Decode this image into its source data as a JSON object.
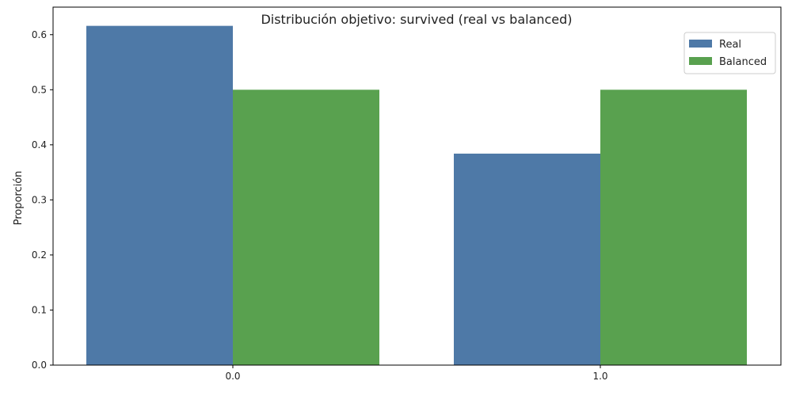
{
  "chart_data": {
    "type": "bar",
    "title": "Distribución objetivo: survived (real vs balanced)",
    "xlabel": "",
    "ylabel": "Proporción",
    "categories": [
      "0.0",
      "1.0"
    ],
    "series": [
      {
        "name": "Real",
        "values": [
          0.616,
          0.384
        ],
        "color": "#4e79a7"
      },
      {
        "name": "Balanced",
        "values": [
          0.5,
          0.5
        ],
        "color": "#59a14f"
      }
    ],
    "ylim": [
      0,
      0.65
    ],
    "yticks": [
      "0.0",
      "0.1",
      "0.2",
      "0.3",
      "0.4",
      "0.5",
      "0.6"
    ],
    "legend_position": "top-right",
    "grid": false
  }
}
